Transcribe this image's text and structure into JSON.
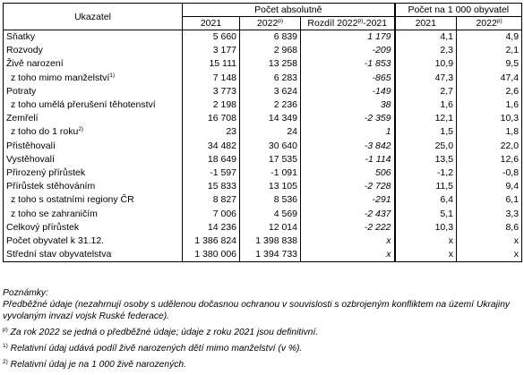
{
  "header": {
    "ukazatel": "Ukazatel",
    "group_abs": "Počet absolutně",
    "group_rel": "Počet na 1 000 obyvatel",
    "col_2021": "2021",
    "col_2022": "2022",
    "col_2022_sup": "p)",
    "col_diff_a": "Rozdíl 2022",
    "col_diff_sup": "p)",
    "col_diff_b": "-2021",
    "col_rel_2021": "2021",
    "col_rel_2022": "2022",
    "col_rel_2022_sup": "p)"
  },
  "rows": [
    {
      "label": "Sňatky",
      "sup": "",
      "sub": false,
      "a2021": "5 660",
      "a2022": "6 839",
      "diff": "1 179",
      "r2021": "4,1",
      "r2022": "4,9"
    },
    {
      "label": "Rozvody",
      "sup": "",
      "sub": false,
      "a2021": "3 177",
      "a2022": "2 968",
      "diff": "-209",
      "r2021": "2,3",
      "r2022": "2,1"
    },
    {
      "label": "Živě narození",
      "sup": "",
      "sub": false,
      "a2021": "15 111",
      "a2022": "13 258",
      "diff": "-1 853",
      "r2021": "10,9",
      "r2022": "9,5"
    },
    {
      "label": "z toho mimo manželství",
      "sup": "1)",
      "sub": true,
      "a2021": "7 148",
      "a2022": "6 283",
      "diff": "-865",
      "r2021": "47,3",
      "r2022": "47,4"
    },
    {
      "label": "Potraty",
      "sup": "",
      "sub": false,
      "a2021": "3 773",
      "a2022": "3 624",
      "diff": "-149",
      "r2021": "2,7",
      "r2022": "2,6"
    },
    {
      "label": "z toho umělá přerušení těhotenství",
      "sup": "",
      "sub": true,
      "a2021": "2 198",
      "a2022": "2 236",
      "diff": "38",
      "r2021": "1,6",
      "r2022": "1,6"
    },
    {
      "label": "Zemřelí",
      "sup": "",
      "sub": false,
      "a2021": "16 708",
      "a2022": "14 349",
      "diff": "-2 359",
      "r2021": "12,1",
      "r2022": "10,3"
    },
    {
      "label": "z toho do 1 roku",
      "sup": "2)",
      "sub": true,
      "a2021": "23",
      "a2022": "24",
      "diff": "1",
      "r2021": "1,5",
      "r2022": "1,8"
    },
    {
      "label": "Přistěhovalí",
      "sup": "",
      "sub": false,
      "a2021": "34 482",
      "a2022": "30 640",
      "diff": "-3 842",
      "r2021": "25,0",
      "r2022": "22,0"
    },
    {
      "label": "Vystěhovalí",
      "sup": "",
      "sub": false,
      "a2021": "18 649",
      "a2022": "17 535",
      "diff": "-1 114",
      "r2021": "13,5",
      "r2022": "12,6"
    },
    {
      "label": "Přirozený přírůstek",
      "sup": "",
      "sub": false,
      "a2021": "-1 597",
      "a2022": "-1 091",
      "diff": "506",
      "r2021": "-1,2",
      "r2022": "-0,8"
    },
    {
      "label": "Přírůstek stěhováním",
      "sup": "",
      "sub": false,
      "a2021": "15 833",
      "a2022": "13 105",
      "diff": "-2 728",
      "r2021": "11,5",
      "r2022": "9,4"
    },
    {
      "label": "z toho s ostatními regiony ČR",
      "sup": "",
      "sub": true,
      "a2021": "8 827",
      "a2022": "8 536",
      "diff": "-291",
      "r2021": "6,4",
      "r2022": "6,1"
    },
    {
      "label": "z toho se zahraničím",
      "sup": "",
      "sub": true,
      "a2021": "7 006",
      "a2022": "4 569",
      "diff": "-2 437",
      "r2021": "5,1",
      "r2022": "3,3"
    },
    {
      "label": "Celkový přírůstek",
      "sup": "",
      "sub": false,
      "a2021": "14 236",
      "a2022": "12 014",
      "diff": "-2 222",
      "r2021": "10,3",
      "r2022": "8,6"
    },
    {
      "label": "Počet obyvatel k 31.12.",
      "sup": "",
      "sub": false,
      "a2021": "1 386 824",
      "a2022": "1 398 838",
      "diff": "x",
      "r2021": "x",
      "r2022": "x"
    },
    {
      "label": "Střední stav obyvatelstva",
      "sup": "",
      "sub": false,
      "a2021": "1 380 006",
      "a2022": "1 394 733",
      "diff": "x",
      "r2021": "x",
      "r2022": "x"
    }
  ],
  "notes": {
    "heading": "Poznámky:",
    "prelim": "Předběžné údaje (nezahrnují osoby s udělenou dočasnou ochranou v souvislosti s ozbrojeným konfliktem na území Ukrajiny vyvolaným invazí vojsk Ruské federace).",
    "p_mark": "p)",
    "p_text": " Za rok 2022 se jedná o předběžné údaje; údaje z roku 2021 jsou definitivní.",
    "n1_mark": "1)",
    "n1_text": " Relativní údaj udává podíl živě narozených dětí mimo manželství (v %).",
    "n2_mark": "2)",
    "n2_text": " Relativní údaj je na 1 000 živě narozených."
  }
}
